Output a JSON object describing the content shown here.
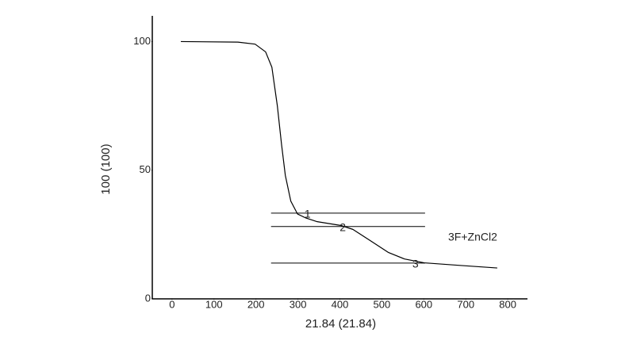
{
  "chart_data": {
    "type": "line",
    "x_label": "21.84 (21.84)",
    "y_label": "100 (100)",
    "xlim": [
      -47,
      847
    ],
    "ylim": [
      0,
      110
    ],
    "xticks": [
      0,
      100,
      200,
      300,
      400,
      500,
      600,
      700,
      800
    ],
    "yticks": [
      0,
      50,
      100
    ],
    "x": [
      21,
      157,
      198,
      223,
      238,
      251,
      261,
      270,
      283,
      299,
      318,
      346,
      403,
      431,
      469,
      516,
      554,
      601,
      686,
      775
    ],
    "series": [
      {
        "name": "3F+ZnCl2",
        "color": "#000000",
        "values": [
          100,
          99.8,
          99,
          96,
          90,
          75,
          60,
          48,
          38,
          33,
          31.5,
          30,
          28.5,
          27,
          23,
          18,
          15.5,
          14,
          13,
          12
        ]
      }
    ],
    "reference_lines": [
      {
        "label": "1",
        "y": 33.3,
        "xrange": [
          236,
          603
        ],
        "label_x": 323
      },
      {
        "label": "2",
        "y": 28.1,
        "xrange": [
          236,
          603
        ],
        "label_x": 407
      },
      {
        "label": "3",
        "y": 13.9,
        "xrange": [
          236,
          603
        ],
        "label_x": 580
      }
    ]
  }
}
